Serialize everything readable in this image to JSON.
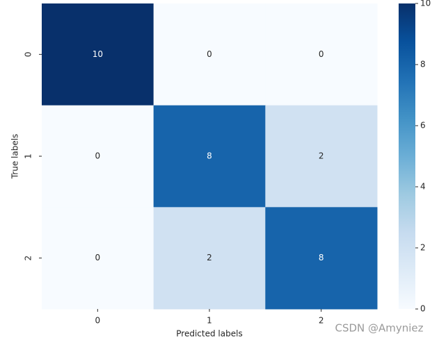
{
  "chart_data": {
    "type": "heatmap",
    "xlabel": "Predicted labels",
    "ylabel": "True labels",
    "x_categories": [
      "0",
      "1",
      "2"
    ],
    "y_categories": [
      "0",
      "1",
      "2"
    ],
    "values": [
      [
        10,
        0,
        0
      ],
      [
        0,
        8,
        2
      ],
      [
        0,
        2,
        8
      ]
    ],
    "colorbar_lim": [
      0,
      10
    ],
    "colorbar_ticks": [
      0,
      2,
      4,
      6,
      8,
      10
    ],
    "cmap": [
      "#f7fbff",
      "#deebf7",
      "#c6dbef",
      "#9ecae1",
      "#6baed6",
      "#4292c6",
      "#2171b5",
      "#08519c",
      "#08306b"
    ],
    "watermark": "CSDN @Amyniez"
  }
}
